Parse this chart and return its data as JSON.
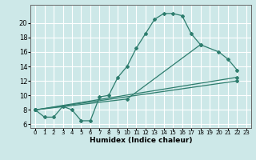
{
  "bg_color": "#cde8e8",
  "grid_color": "#ffffff",
  "line_color": "#2e7d6e",
  "xlabel": "Humidex (Indice chaleur)",
  "xlim": [
    -0.5,
    23.5
  ],
  "ylim": [
    5.5,
    22.5
  ],
  "xticks": [
    0,
    1,
    2,
    3,
    4,
    5,
    6,
    7,
    8,
    9,
    10,
    11,
    12,
    13,
    14,
    15,
    16,
    17,
    18,
    19,
    20,
    21,
    22,
    23
  ],
  "yticks": [
    6,
    8,
    10,
    12,
    14,
    16,
    18,
    20
  ],
  "line1_x": [
    0,
    1,
    2,
    3,
    4,
    5,
    6,
    7,
    8,
    9,
    10,
    11,
    12,
    13,
    14,
    15,
    16,
    17,
    18
  ],
  "line1_y": [
    8.0,
    7.0,
    7.0,
    8.5,
    8.0,
    6.5,
    6.5,
    9.8,
    10.0,
    12.5,
    14.0,
    16.5,
    18.5,
    20.5,
    21.3,
    21.3,
    21.0,
    18.5,
    17.0
  ],
  "line2_x": [
    0,
    10,
    18,
    20,
    21,
    22
  ],
  "line2_y": [
    8.0,
    9.5,
    17.0,
    16.0,
    15.0,
    13.5
  ],
  "line3_x": [
    0,
    22
  ],
  "line3_y": [
    8.0,
    12.5
  ],
  "line4_x": [
    0,
    22
  ],
  "line4_y": [
    8.0,
    12.0
  ]
}
